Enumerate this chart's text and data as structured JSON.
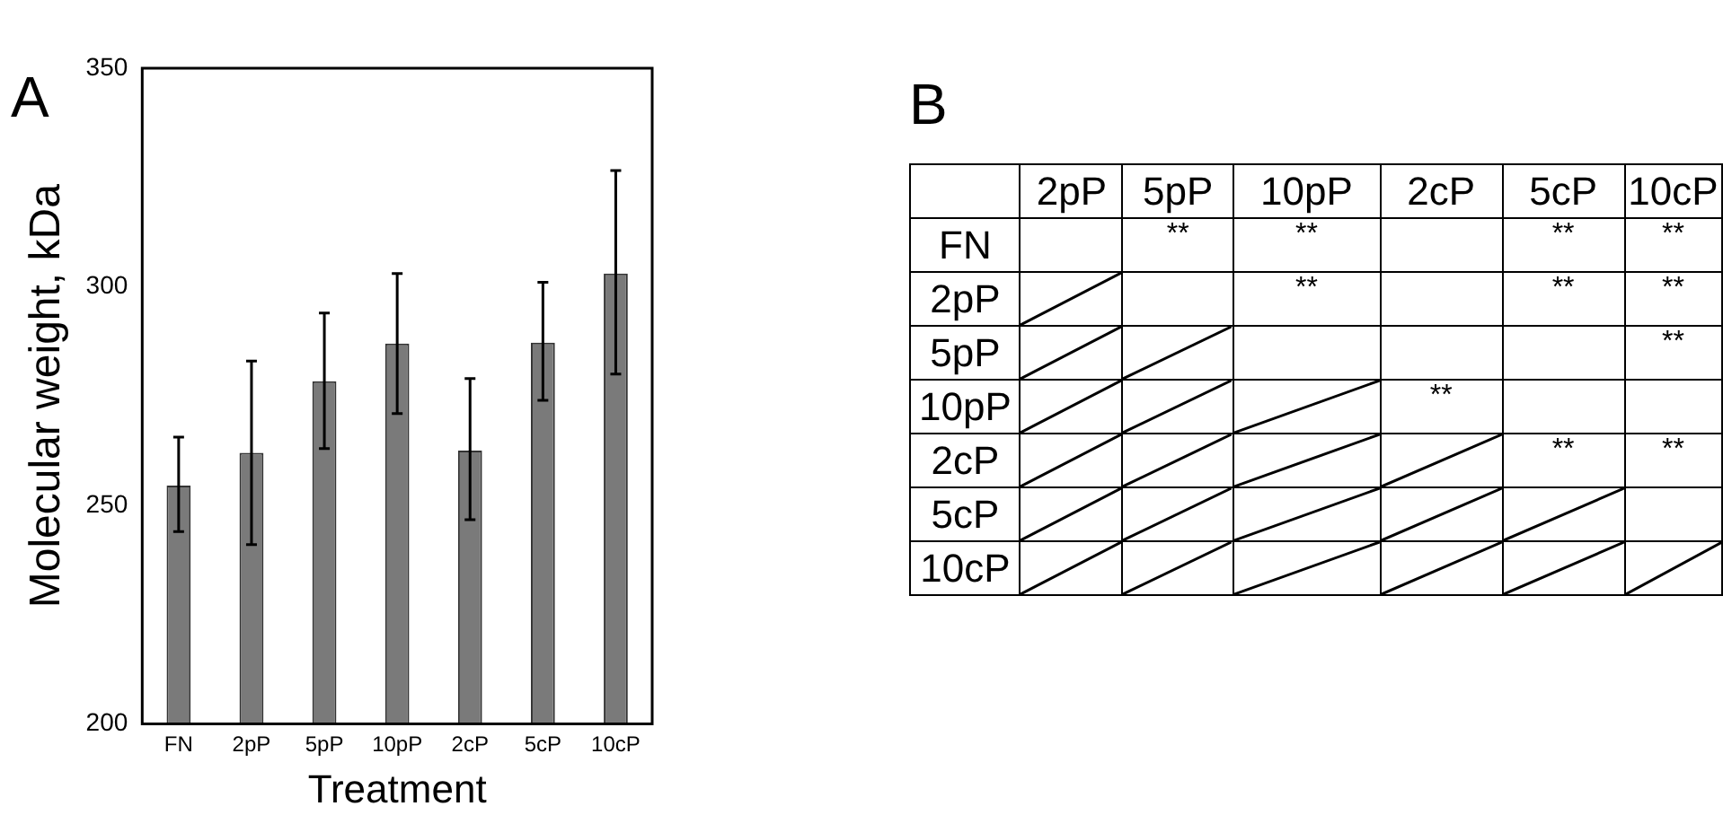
{
  "chart_data": [
    {
      "type": "bar",
      "title": "A",
      "xlabel": "Treatment",
      "ylabel": "Molecular weight, kDa",
      "categories": [
        "FN",
        "2pP",
        "5pP",
        "10pP",
        "2cP",
        "5cP",
        "10cP"
      ],
      "values": [
        254.5,
        262,
        278.4,
        287,
        262.5,
        287.2,
        303
      ],
      "color": "#7a7a7a",
      "errors": [
        [
          244,
          265.6
        ],
        [
          241,
          283
        ],
        [
          263,
          294
        ],
        [
          271,
          303
        ],
        [
          246.7,
          279
        ],
        [
          274,
          301
        ],
        [
          280,
          326.6
        ]
      ],
      "ylim": [
        200,
        350
      ],
      "yticks": [
        200,
        250,
        300,
        350
      ]
    },
    {
      "type": "other",
      "title": "B",
      "categories": [
        "2pP",
        "5pP",
        "10pP",
        "2cP",
        "5cP",
        "10cP"
      ],
      "y_categories": [
        "FN",
        "2pP",
        "5pP",
        "10pP",
        "2cP",
        "5cP",
        "10cP"
      ],
      "cell_labels": [
        [
          null,
          "**",
          "**",
          null,
          "**",
          "**"
        ],
        [
          null,
          null,
          "**",
          null,
          "**",
          "**"
        ],
        [
          null,
          null,
          null,
          null,
          null,
          "**"
        ],
        [
          null,
          null,
          null,
          "**",
          null,
          null
        ],
        [
          null,
          null,
          null,
          null,
          "**",
          "**"
        ],
        [
          null,
          null,
          null,
          null,
          null,
          null
        ],
        [
          null,
          null,
          null,
          null,
          null,
          null
        ]
      ]
    }
  ]
}
